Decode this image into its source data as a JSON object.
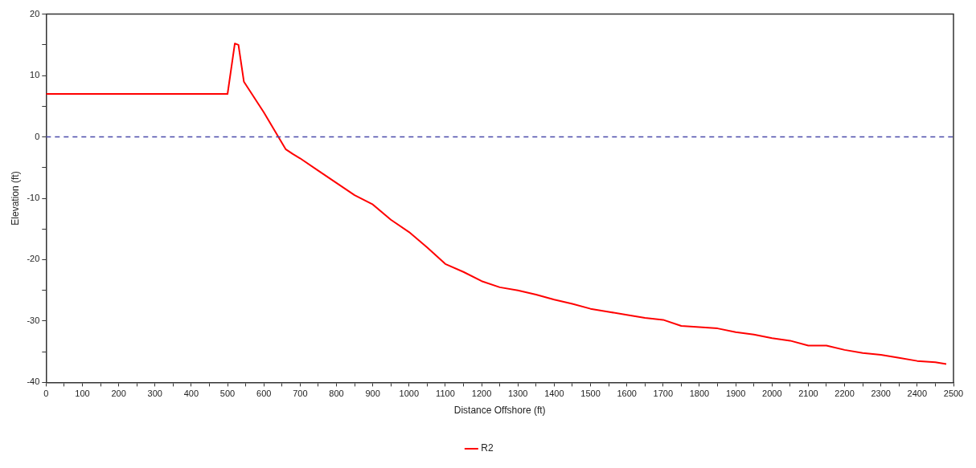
{
  "chart_data": {
    "type": "line",
    "xlabel": "Distance Offshore (ft)",
    "ylabel": "Elevation (ft)",
    "xlim": [
      0,
      2500
    ],
    "ylim": [
      -40,
      20
    ],
    "xticks": [
      0,
      {
        "value": 50,
        "label": null
      },
      100,
      {
        "value": 150,
        "label": null
      },
      200,
      {
        "value": 250,
        "label": null
      },
      300,
      {
        "value": 350,
        "label": null
      },
      400,
      {
        "value": 450,
        "label": null
      },
      500,
      {
        "value": 550,
        "label": null
      },
      600,
      {
        "value": 650,
        "label": null
      },
      700,
      {
        "value": 750,
        "label": null
      },
      800,
      {
        "value": 850,
        "label": null
      },
      900,
      {
        "value": 950,
        "label": null
      },
      1000,
      {
        "value": 1050,
        "label": null
      },
      1100,
      {
        "value": 1150,
        "label": null
      },
      1200,
      {
        "value": 1250,
        "label": null
      },
      1300,
      {
        "value": 1350,
        "label": null
      },
      1400,
      {
        "value": 1450,
        "label": null
      },
      1500,
      {
        "value": 1550,
        "label": null
      },
      1600,
      {
        "value": 1650,
        "label": null
      },
      1700,
      {
        "value": 1750,
        "label": null
      },
      1800,
      {
        "value": 1850,
        "label": null
      },
      1900,
      {
        "value": 1950,
        "label": null
      },
      2000,
      {
        "value": 2050,
        "label": null
      },
      2100,
      {
        "value": 2150,
        "label": null
      },
      2200,
      {
        "value": 2250,
        "label": null
      },
      2300,
      {
        "value": 2350,
        "label": null
      },
      2400,
      {
        "value": 2450,
        "label": null
      },
      2500
    ],
    "yticks": [
      -40,
      {
        "value": -35,
        "label": null
      },
      -30,
      {
        "value": -25,
        "label": null
      },
      -20,
      {
        "value": -15,
        "label": null
      },
      -10,
      {
        "value": -5,
        "label": null
      },
      0,
      {
        "value": 5,
        "label": null
      },
      10,
      {
        "value": 15,
        "label": null
      },
      20
    ],
    "x": [
      0,
      500,
      520,
      530,
      545,
      600,
      640,
      660,
      680,
      700,
      750,
      800,
      850,
      900,
      950,
      1000,
      1050,
      1100,
      1150,
      1200,
      1250,
      1300,
      1350,
      1400,
      1450,
      1500,
      1550,
      1600,
      1650,
      1700,
      1750,
      1800,
      1850,
      1900,
      1950,
      2000,
      2050,
      2100,
      2150,
      2200,
      2250,
      2300,
      2350,
      2400,
      2450,
      2480
    ],
    "series": [
      {
        "name": "R2",
        "color": "#ff0000",
        "values": [
          7,
          7,
          15.2,
          15,
          9,
          4,
          0,
          -2,
          -2.8,
          -3.5,
          -5.5,
          -7.5,
          -9.5,
          -11,
          -13.5,
          -15.5,
          -18,
          -20.7,
          -22,
          -23.5,
          -24.5,
          -25,
          -25.7,
          -26.5,
          -27.2,
          -28,
          -28.5,
          -29,
          -29.5,
          -29.8,
          -30.8,
          -31,
          -31.2,
          -31.8,
          -32.2,
          -32.8,
          -33.2,
          -34,
          -34,
          -34.7,
          -35.2,
          -35.5,
          -36,
          -36.5,
          -36.7,
          -37
        ]
      }
    ],
    "ref_lines": [
      {
        "axis": "y",
        "value": 0,
        "color": "#4a4aaa",
        "line_style": "dashed"
      }
    ],
    "legend": "bottom",
    "grid": false,
    "marker": "none",
    "line_style": "solid"
  }
}
